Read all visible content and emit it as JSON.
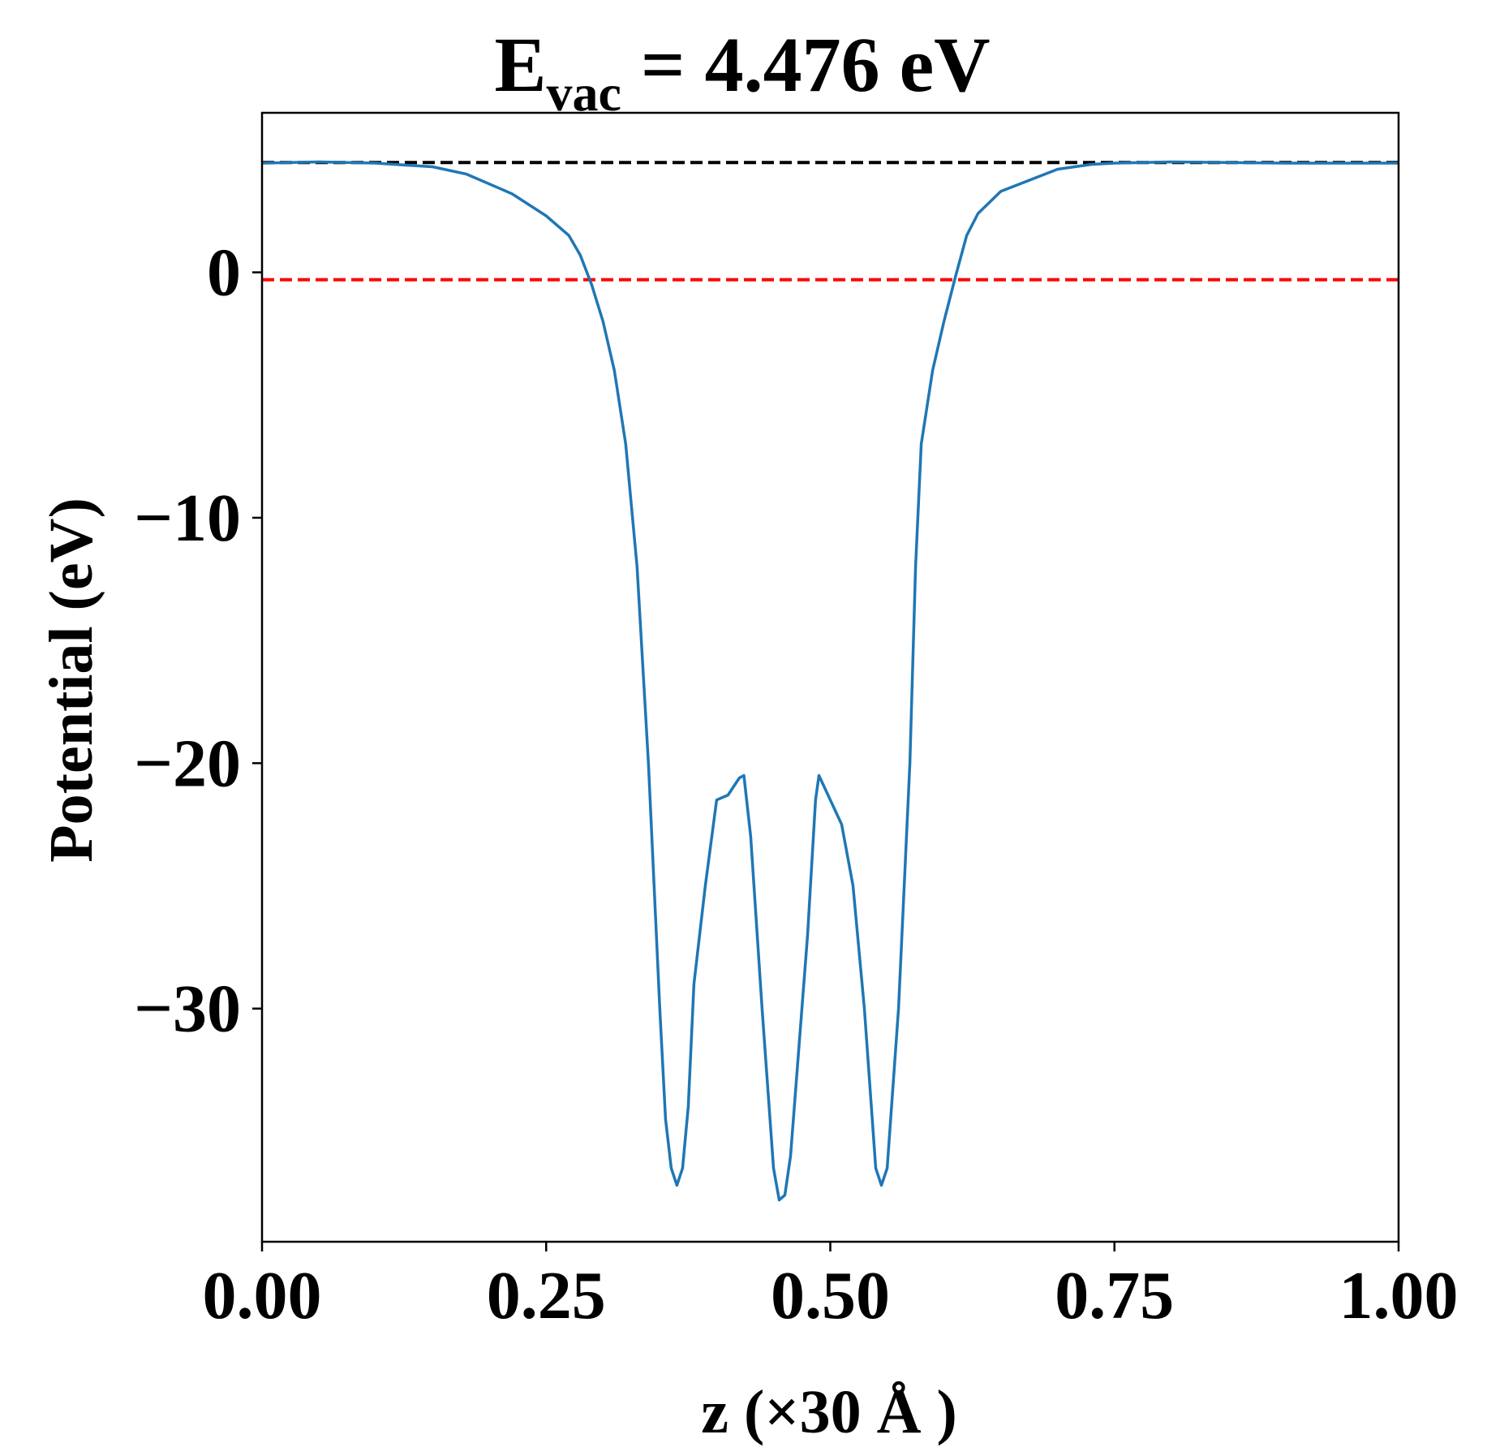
{
  "chart_data": {
    "type": "line",
    "title": {
      "main": "E",
      "subscript": "vac",
      "suffix": " = 4.476 eV"
    },
    "xlabel": "z (×30 Å )",
    "ylabel": "Potential (eV)",
    "xlim": [
      0,
      1
    ],
    "ylim": [
      -39.5,
      6.5
    ],
    "xticks": [
      0,
      0.25,
      0.5,
      0.75,
      1.0
    ],
    "xtick_labels": [
      "0.00",
      "0.25",
      "0.50",
      "0.75",
      "1.00"
    ],
    "yticks": [
      0,
      -10,
      -20,
      -30
    ],
    "ytick_labels": [
      "0",
      "−10",
      "−20",
      "−30"
    ],
    "grid": false,
    "reference_lines": [
      {
        "y": 4.476,
        "color": "#000000",
        "style": "dashed"
      },
      {
        "y": -0.3,
        "color": "#ff0000",
        "style": "dashed"
      }
    ],
    "series": [
      {
        "color": "#1f77b4",
        "x": [
          0.0,
          0.05,
          0.1,
          0.15,
          0.18,
          0.2,
          0.22,
          0.25,
          0.27,
          0.28,
          0.29,
          0.3,
          0.31,
          0.32,
          0.33,
          0.34,
          0.345,
          0.35,
          0.355,
          0.36,
          0.365,
          0.37,
          0.375,
          0.38,
          0.39,
          0.4,
          0.41,
          0.42,
          0.424,
          0.43,
          0.44,
          0.45,
          0.455,
          0.46,
          0.465,
          0.47,
          0.48,
          0.487,
          0.49,
          0.5,
          0.51,
          0.52,
          0.53,
          0.54,
          0.545,
          0.55,
          0.56,
          0.565,
          0.57,
          0.575,
          0.58,
          0.59,
          0.6,
          0.61,
          0.62,
          0.63,
          0.65,
          0.7,
          0.73,
          0.75,
          0.8,
          0.9,
          1.0
        ],
        "y": [
          4.45,
          4.5,
          4.45,
          4.3,
          4.0,
          3.6,
          3.2,
          2.3,
          1.5,
          0.7,
          -0.5,
          -2.0,
          -4.0,
          -7.0,
          -12.0,
          -20.0,
          -25.0,
          -30.0,
          -34.5,
          -36.5,
          -37.2,
          -36.5,
          -34.0,
          -29.0,
          -25.0,
          -21.5,
          -21.3,
          -20.6,
          -20.5,
          -23.0,
          -30.0,
          -36.5,
          -37.8,
          -37.6,
          -36.0,
          -33.0,
          -27.0,
          -21.5,
          -20.5,
          -21.5,
          -22.5,
          -25.0,
          -30.0,
          -36.5,
          -37.2,
          -36.5,
          -30.0,
          -25.0,
          -20.0,
          -12.0,
          -7.0,
          -4.0,
          -2.0,
          -0.2,
          1.5,
          2.4,
          3.3,
          4.2,
          4.4,
          4.45,
          4.5,
          4.45,
          4.45
        ]
      }
    ]
  }
}
